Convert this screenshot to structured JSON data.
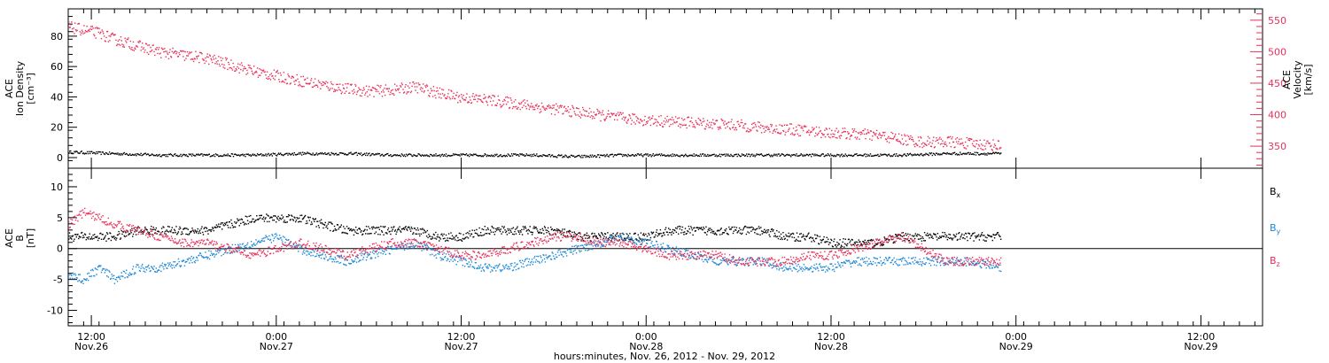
{
  "chart_data": [
    {
      "type": "scatter",
      "panel": "top",
      "ylabel_left_lines": [
        "ACE",
        "Ion Density",
        "[cm⁻³]"
      ],
      "ylabel_right_lines": [
        "ACE",
        "Velocity",
        "[km/s]"
      ],
      "ylim_left": [
        -7,
        98
      ],
      "ylim_right": [
        315,
        568
      ],
      "left_ticks": [
        0,
        20,
        40,
        60,
        80
      ],
      "right_ticks": [
        350,
        400,
        450,
        500,
        550
      ],
      "colors": {
        "density": "#000000",
        "velocity": "#e8305a"
      },
      "series": [
        {
          "axis": "left",
          "color_key": "density",
          "x_hours": [
            0,
            6,
            12,
            18,
            24,
            30,
            36,
            42,
            48,
            54,
            60,
            66,
            72,
            78,
            84,
            90,
            96,
            102,
            108,
            114,
            121
          ],
          "y": [
            4,
            3,
            2,
            2,
            2,
            3,
            3,
            2,
            2,
            2,
            2,
            1,
            2,
            2,
            2,
            2,
            2,
            2,
            2,
            3,
            3
          ]
        },
        {
          "axis": "right",
          "color_key": "velocity",
          "x_hours": [
            0,
            2,
            4,
            6,
            9,
            12,
            15,
            18,
            21,
            24,
            27,
            30,
            33,
            36,
            39,
            42,
            45,
            48,
            51,
            54,
            57,
            60,
            63,
            66,
            69,
            72,
            75,
            78,
            81,
            84,
            87,
            90,
            93,
            96,
            99,
            102,
            105,
            108,
            111,
            114,
            117,
            121
          ],
          "y": [
            540,
            535,
            530,
            520,
            510,
            500,
            495,
            490,
            480,
            470,
            462,
            455,
            448,
            442,
            438,
            440,
            445,
            435,
            428,
            425,
            420,
            415,
            410,
            405,
            400,
            395,
            392,
            390,
            388,
            386,
            384,
            380,
            378,
            375,
            372,
            370,
            368,
            362,
            357,
            358,
            355,
            352
          ]
        }
      ]
    },
    {
      "type": "line",
      "panel": "bottom",
      "ylabel_lines": [
        "ACE",
        "B",
        "[nT]"
      ],
      "ylim": [
        -12.5,
        13
      ],
      "ticks": [
        -10,
        -5,
        0,
        5,
        10
      ],
      "legend": [
        "Bₓ",
        "Bᵧ",
        "B_z"
      ],
      "legend_placement": "right",
      "colors": {
        "bx": "#000000",
        "by": "#1e88d8",
        "bz": "#e8305a"
      },
      "series": [
        {
          "name": "Bx",
          "color_key": "bx",
          "x_hours": [
            0,
            3,
            6,
            9,
            12,
            15,
            18,
            21,
            24,
            27,
            30,
            33,
            36,
            39,
            42,
            45,
            48,
            51,
            54,
            57,
            60,
            63,
            66,
            69,
            72,
            75,
            78,
            81,
            84,
            87,
            90,
            93,
            96,
            99,
            102,
            105,
            108,
            111,
            114,
            117,
            121
          ],
          "y": [
            2,
            2,
            2,
            3,
            3,
            3,
            3,
            4,
            5,
            5,
            5,
            4,
            3,
            3,
            3,
            3,
            2,
            2,
            3,
            3,
            3,
            3,
            2,
            2,
            2,
            2,
            3,
            3,
            3,
            3,
            3,
            2,
            2,
            1,
            1,
            1,
            2,
            2,
            2,
            2,
            2
          ]
        },
        {
          "name": "By",
          "color_key": "by",
          "x_hours": [
            0,
            2,
            4,
            6,
            9,
            12,
            15,
            18,
            21,
            24,
            27,
            30,
            33,
            36,
            39,
            42,
            45,
            48,
            51,
            54,
            57,
            60,
            63,
            66,
            69,
            72,
            75,
            78,
            81,
            84,
            87,
            90,
            93,
            96,
            99,
            102,
            105,
            108,
            111,
            114,
            117,
            121
          ],
          "y": [
            -4,
            -5,
            -3,
            -5,
            -3,
            -3,
            -2,
            -1,
            0,
            1,
            2,
            0,
            -1,
            -2,
            -1,
            0,
            1,
            -1,
            -2,
            -3,
            -3,
            -2,
            -1,
            0,
            1,
            2,
            1,
            0,
            -1,
            -2,
            -2,
            -2,
            -3,
            -3,
            -3,
            -2,
            -2,
            -2,
            -2,
            -2,
            -2,
            -3
          ]
        },
        {
          "name": "Bz",
          "color_key": "bz",
          "x_hours": [
            0,
            2,
            4,
            6,
            9,
            12,
            15,
            18,
            21,
            24,
            27,
            30,
            33,
            36,
            39,
            42,
            45,
            48,
            51,
            54,
            57,
            60,
            63,
            66,
            69,
            72,
            75,
            78,
            81,
            84,
            87,
            90,
            93,
            96,
            99,
            102,
            105,
            108,
            111,
            114,
            117,
            121
          ],
          "y": [
            4,
            6,
            5,
            4,
            3,
            2,
            1,
            1,
            0,
            -1,
            0,
            1,
            0,
            -1,
            0,
            1,
            1,
            0,
            -1,
            -1,
            0,
            1,
            2,
            2,
            1,
            1,
            0,
            -1,
            -1,
            -1,
            -2,
            -2,
            -2,
            -1,
            -1,
            0,
            1,
            2,
            0,
            -2,
            -2,
            -2
          ]
        }
      ]
    }
  ],
  "x_axis": {
    "xlim_hours": [
      0,
      155
    ],
    "ticks": [
      {
        "h": 3,
        "time": "12:00",
        "date": "Nov.26"
      },
      {
        "h": 27,
        "time": "0:00",
        "date": "Nov.27"
      },
      {
        "h": 51,
        "time": "12:00",
        "date": "Nov.27"
      },
      {
        "h": 75,
        "time": "0:00",
        "date": "Nov.28"
      },
      {
        "h": 99,
        "time": "12:00",
        "date": "Nov.28"
      },
      {
        "h": 123,
        "time": "0:00",
        "date": "Nov.29"
      },
      {
        "h": 147,
        "time": "12:00",
        "date": "Nov.29"
      }
    ],
    "xlabel": "hours:minutes, Nov. 26, 2012 - Nov. 29, 2012"
  },
  "legend_items": [
    {
      "text": "B",
      "sub": "x",
      "color": "#000000"
    },
    {
      "text": "B",
      "sub": "y",
      "color": "#1e88d8"
    },
    {
      "text": "B",
      "sub": "z",
      "color": "#e8305a"
    }
  ]
}
